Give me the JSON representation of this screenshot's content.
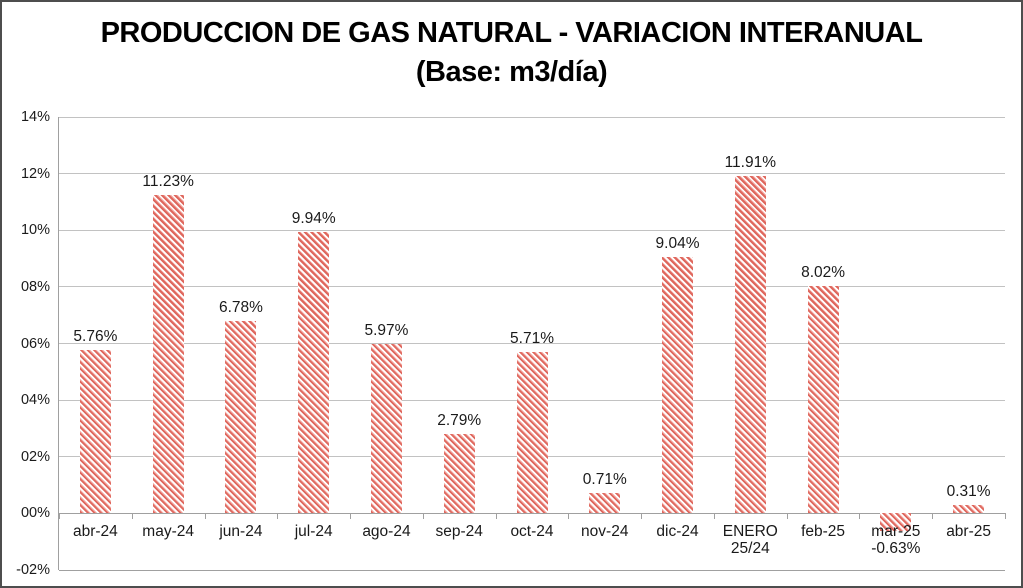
{
  "chart_data": {
    "type": "bar",
    "title_line1": "PRODUCCION DE GAS NATURAL - VARIACION INTERANUAL",
    "title_line2": "(Base: m3/día)",
    "categories": [
      "abr-24",
      "may-24",
      "jun-24",
      "jul-24",
      "ago-24",
      "sep-24",
      "oct-24",
      "nov-24",
      "dic-24",
      "ENERO\n25/24",
      "feb-25",
      "mar-25",
      "abr-25"
    ],
    "values": [
      5.76,
      11.23,
      6.78,
      9.94,
      5.97,
      2.79,
      5.71,
      0.71,
      9.04,
      11.91,
      8.02,
      -0.63,
      0.31
    ],
    "labels": [
      "5.76%",
      "11.23%",
      "6.78%",
      "9.94%",
      "5.97%",
      "2.79%",
      "5.71%",
      "0.71%",
      "9.04%",
      "11.91%",
      "8.02%",
      "-0.63%",
      "0.31%"
    ],
    "y_ticks": [
      "14%",
      "12%",
      "10%",
      "08%",
      "06%",
      "04%",
      "02%",
      "00%",
      "-02%"
    ],
    "y_tick_values": [
      14,
      12,
      10,
      8,
      6,
      4,
      2,
      0,
      -2
    ],
    "ylim": [
      -2,
      14
    ],
    "xlabel": "",
    "ylabel": "",
    "grid": true,
    "legend": "none",
    "colors": {
      "bar_stripe": "#df685e",
      "bar_stripe_light": "#f3aca6",
      "bar_background": "#ffffff",
      "grid": "#c2c2c2",
      "axis": "#a0a0a0",
      "frame": "#4e4e4e",
      "text": "#1a1a1a",
      "background": "#ffffff"
    }
  }
}
